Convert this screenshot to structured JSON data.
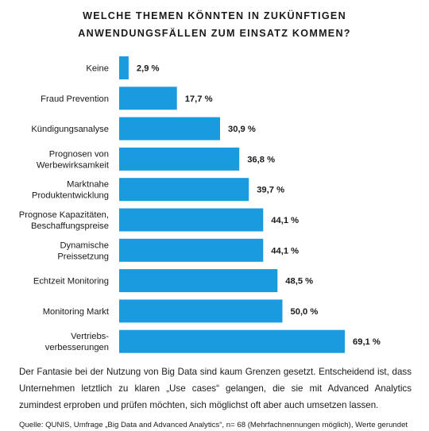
{
  "chart_data": {
    "type": "bar",
    "orientation": "horizontal",
    "title": "WELCHE THEMEN KÖNNTEN IN ZUKÜNFTIGEN ANWENDUNGSFÄLLEN ZUM EINSATZ KOMMEN?",
    "title_lines": [
      "WELCHE THEMEN KÖNNTEN IN ZUKÜNFTIGEN",
      "ANWENDUNGSFÄLLEN ZUM EINSATZ KOMMEN?"
    ],
    "categories": [
      [
        "Keine"
      ],
      [
        "Fraud Prevention"
      ],
      [
        "Kündigungsanalyse"
      ],
      [
        "Prognosen von",
        "Werbewirksamkeit"
      ],
      [
        "Marktnahe",
        "Produktentwicklung"
      ],
      [
        "Prognose Kapazitäten,",
        "Beschaffungspreise"
      ],
      [
        "Dynamische",
        "Preissetzung"
      ],
      [
        "Echtzeit Monitoring"
      ],
      [
        "Monitoring Markt"
      ],
      [
        "Vertriebs-",
        "verbesserungen"
      ]
    ],
    "values": [
      2.9,
      17.7,
      30.9,
      36.8,
      39.7,
      44.1,
      44.1,
      48.5,
      50.0,
      69.1
    ],
    "value_labels": [
      "2,9 %",
      "17,7 %",
      "30,9 %",
      "36,8 %",
      "39,7 %",
      "44,1 %",
      "44,1 %",
      "48,5 %",
      "50,0 %",
      "69,1 %"
    ],
    "unit": "%",
    "xlim": [
      0,
      69.1
    ],
    "bar_color": "#1a9bdf",
    "grid": false,
    "legend": "none"
  },
  "footer": {
    "description": "Der Fantasie bei der Nutzung von Big Data sind kaum Grenzen gesetzt. Entscheidend ist, dass Unternehmen letztlich zu klaren „Use cases“ gelangen, die sie mit Advanced Analytics zumindest erproben und prüfen möchten, sich möglichst oft aber auch umsetzen lassen.",
    "source": "Quelle: QUNIS, Umfrage „Big Data and Advanced Analytics“, n= 68 (Mehrfachnennungen möglich), Werte gerundet"
  }
}
